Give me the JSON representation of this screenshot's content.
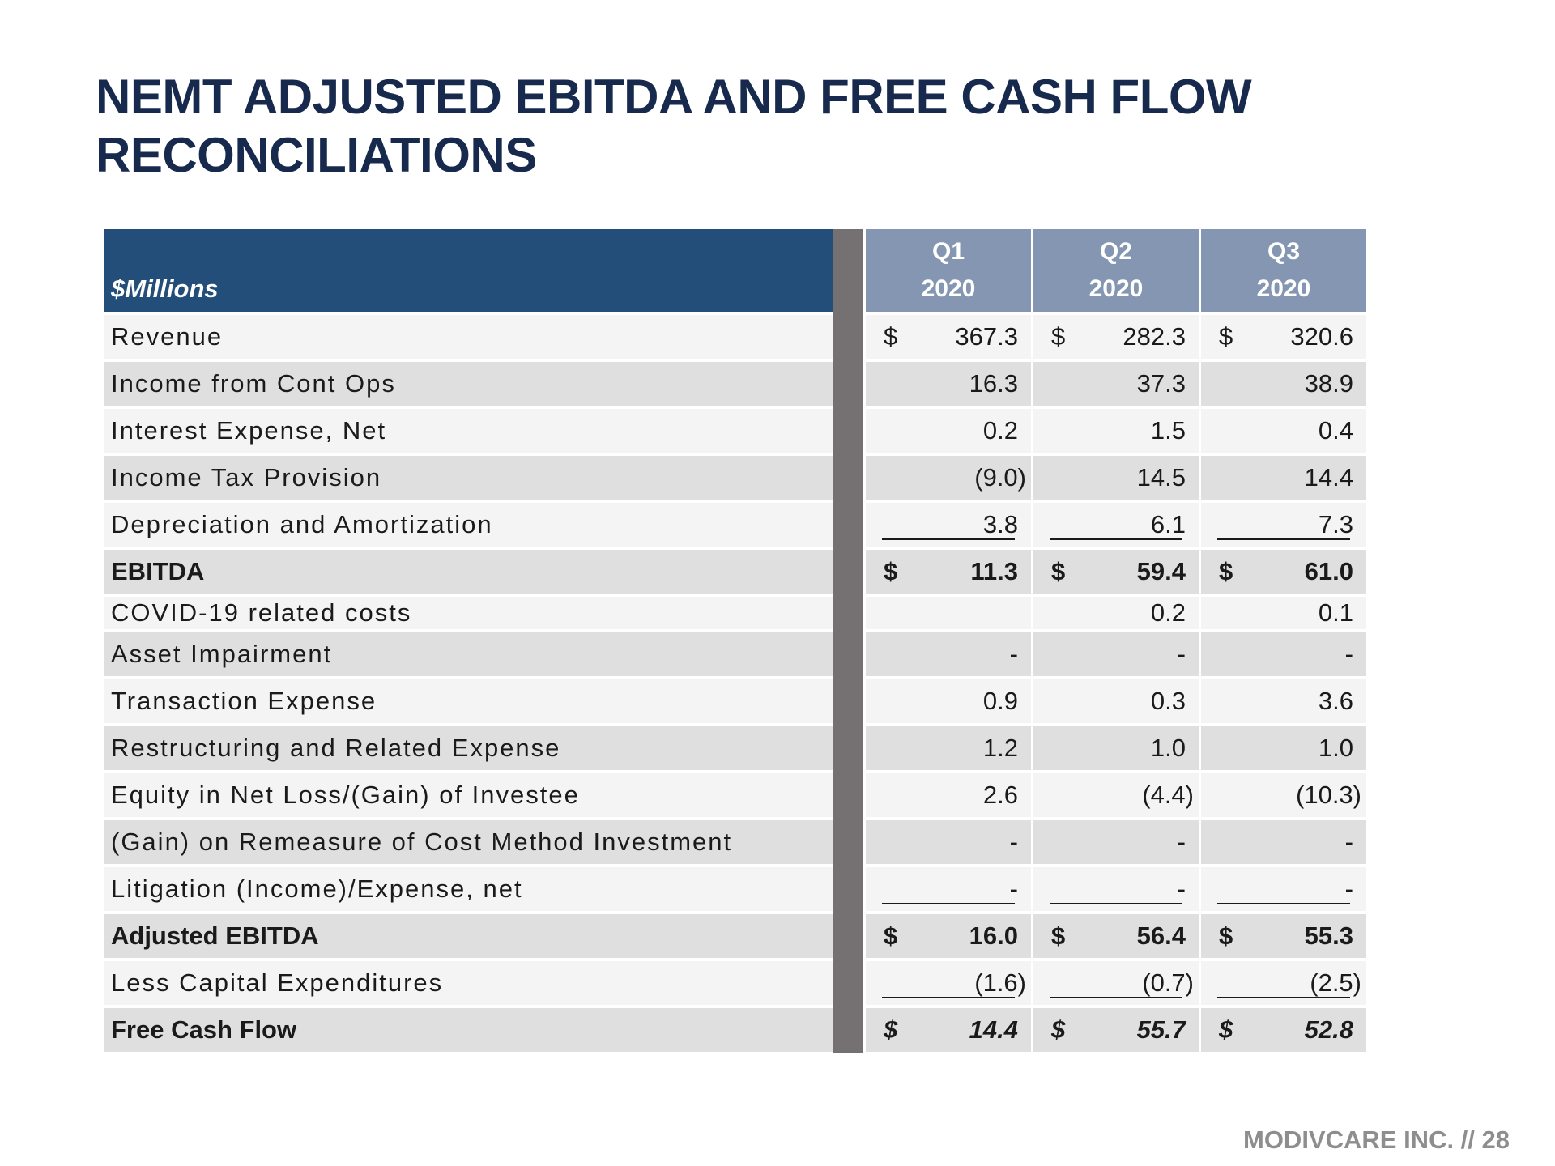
{
  "title": {
    "line1": "NEMT ADJUSTED EBITDA AND FREE CASH FLOW",
    "line2": "RECONCILIATIONS"
  },
  "table": {
    "units_header": "$Millions",
    "columns": [
      {
        "quarter": "Q1",
        "year": "2020"
      },
      {
        "quarter": "Q2",
        "year": "2020"
      },
      {
        "quarter": "Q3",
        "year": "2020"
      }
    ],
    "rows": [
      {
        "label": "Revenue",
        "cells": [
          {
            "cur": "$",
            "val": "367.3"
          },
          {
            "cur": "$",
            "val": "282.3"
          },
          {
            "cur": "$",
            "val": "320.6"
          }
        ]
      },
      {
        "label": "Income from Cont Ops",
        "cells": [
          {
            "cur": "",
            "val": "16.3"
          },
          {
            "cur": "",
            "val": "37.3"
          },
          {
            "cur": "",
            "val": "38.9"
          }
        ]
      },
      {
        "label": "Interest Expense, Net",
        "cells": [
          {
            "cur": "",
            "val": "0.2"
          },
          {
            "cur": "",
            "val": "1.5"
          },
          {
            "cur": "",
            "val": "0.4"
          }
        ]
      },
      {
        "label": "Income Tax Provision",
        "cells": [
          {
            "cur": "",
            "val": "(9.0)"
          },
          {
            "cur": "",
            "val": "14.5"
          },
          {
            "cur": "",
            "val": "14.4"
          }
        ]
      },
      {
        "label": "Depreciation and Amortization",
        "cells": [
          {
            "cur": "",
            "val": "3.8"
          },
          {
            "cur": "",
            "val": "6.1"
          },
          {
            "cur": "",
            "val": "7.3"
          }
        ]
      },
      {
        "label": "EBITDA",
        "cells": [
          {
            "cur": "$",
            "val": "11.3"
          },
          {
            "cur": "$",
            "val": "59.4"
          },
          {
            "cur": "$",
            "val": "61.0"
          }
        ]
      },
      {
        "label": "COVID-19 related costs",
        "cells": [
          {
            "cur": "",
            "val": ""
          },
          {
            "cur": "",
            "val": "0.2"
          },
          {
            "cur": "",
            "val": "0.1"
          }
        ]
      },
      {
        "label": "Asset Impairment",
        "cells": [
          {
            "cur": "",
            "val": "-"
          },
          {
            "cur": "",
            "val": "-"
          },
          {
            "cur": "",
            "val": "-"
          }
        ]
      },
      {
        "label": "Transaction Expense",
        "cells": [
          {
            "cur": "",
            "val": "0.9"
          },
          {
            "cur": "",
            "val": "0.3"
          },
          {
            "cur": "",
            "val": "3.6"
          }
        ]
      },
      {
        "label": "Restructuring and Related Expense",
        "cells": [
          {
            "cur": "",
            "val": "1.2"
          },
          {
            "cur": "",
            "val": "1.0"
          },
          {
            "cur": "",
            "val": "1.0"
          }
        ]
      },
      {
        "label": "Equity in Net Loss/(Gain) of Investee",
        "cells": [
          {
            "cur": "",
            "val": "2.6"
          },
          {
            "cur": "",
            "val": "(4.4)"
          },
          {
            "cur": "",
            "val": "(10.3)"
          }
        ]
      },
      {
        "label": "(Gain) on Remeasure of Cost Method Investment",
        "cells": [
          {
            "cur": "",
            "val": "-"
          },
          {
            "cur": "",
            "val": "-"
          },
          {
            "cur": "",
            "val": "-"
          }
        ]
      },
      {
        "label": "Litigation (Income)/Expense, net",
        "cells": [
          {
            "cur": "",
            "val": "-"
          },
          {
            "cur": "",
            "val": "-"
          },
          {
            "cur": "",
            "val": "-"
          }
        ]
      },
      {
        "label": "Adjusted EBITDA",
        "cells": [
          {
            "cur": "$",
            "val": "16.0"
          },
          {
            "cur": "$",
            "val": "56.4"
          },
          {
            "cur": "$",
            "val": "55.3"
          }
        ]
      },
      {
        "label": "Less Capital Expenditures",
        "cells": [
          {
            "cur": "",
            "val": "(1.6)"
          },
          {
            "cur": "",
            "val": "(0.7)"
          },
          {
            "cur": "",
            "val": "(2.5)"
          }
        ]
      },
      {
        "label": "Free Cash Flow",
        "cells": [
          {
            "cur": "$",
            "val": "14.4"
          },
          {
            "cur": "$",
            "val": "55.7"
          },
          {
            "cur": "$",
            "val": "52.8"
          }
        ]
      }
    ]
  },
  "footer": "MODIVCARE INC. // 28",
  "colors": {
    "title": "#172a4d",
    "header_label_bg": "#234e79",
    "header_quarter_bg": "#8596b2",
    "divider": "#757172",
    "row_light": "#f4f4f4",
    "row_dark": "#dfdfdf",
    "footer": "#8e8e8e"
  }
}
